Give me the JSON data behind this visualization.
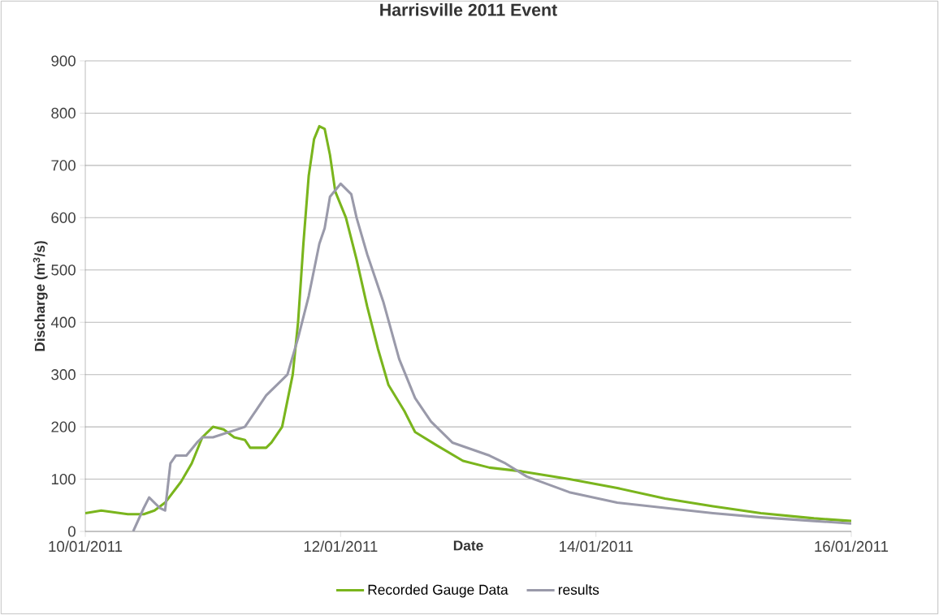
{
  "chart_data": {
    "type": "line",
    "title": "Harrisville 2011 Event",
    "xlabel": "Date",
    "ylabel": "Discharge (m$^{3}$/s)",
    "xlim": [
      "2011-01-10",
      "2011-01-16"
    ],
    "xticks": [
      {
        "value": "2011-01-10",
        "label": "10/01/2011"
      },
      {
        "value": "2011-01-12",
        "label": "12/01/2011"
      },
      {
        "value": "2011-01-14",
        "label": "14/01/2011"
      },
      {
        "value": "2011-01-16",
        "label": "16/01/2011"
      }
    ],
    "ylim": [
      0,
      900
    ],
    "yticks": [
      0,
      100,
      200,
      300,
      400,
      500,
      600,
      700,
      800,
      900
    ],
    "grid": "y",
    "legend": "bottom",
    "marker": "none",
    "line_style": "solid",
    "series": [
      {
        "name": "Recorded Gauge Data",
        "color": "#7ab51d",
        "x": [
          "2011-01-10T00:00",
          "2011-01-10T03:00",
          "2011-01-10T08:00",
          "2011-01-10T11:00",
          "2011-01-10T13:00",
          "2011-01-10T15:00",
          "2011-01-10T18:00",
          "2011-01-10T20:00",
          "2011-01-10T22:00",
          "2011-01-11T00:00",
          "2011-01-11T02:00",
          "2011-01-11T04:00",
          "2011-01-11T06:00",
          "2011-01-11T07:00",
          "2011-01-11T10:00",
          "2011-01-11T11:00",
          "2011-01-11T13:00",
          "2011-01-11T14:00",
          "2011-01-11T15:00",
          "2011-01-11T16:00",
          "2011-01-11T17:00",
          "2011-01-11T18:00",
          "2011-01-11T19:00",
          "2011-01-11T20:00",
          "2011-01-11T21:00",
          "2011-01-11T22:00",
          "2011-01-11T23:00",
          "2011-01-12T01:00",
          "2011-01-12T03:00",
          "2011-01-12T05:00",
          "2011-01-12T07:00",
          "2011-01-12T09:00",
          "2011-01-12T12:00",
          "2011-01-12T14:00",
          "2011-01-12T18:00",
          "2011-01-12T23:00",
          "2011-01-13T04:00",
          "2011-01-13T10:00",
          "2011-01-13T19:00",
          "2011-01-14T04:00",
          "2011-01-14T13:00",
          "2011-01-14T22:00",
          "2011-01-15T07:00",
          "2011-01-15T17:00",
          "2011-01-16T00:00"
        ],
        "values": [
          35,
          40,
          33,
          33,
          40,
          55,
          95,
          130,
          180,
          200,
          195,
          180,
          175,
          160,
          160,
          170,
          200,
          250,
          300,
          400,
          550,
          680,
          750,
          775,
          770,
          720,
          650,
          600,
          520,
          430,
          350,
          280,
          230,
          190,
          165,
          135,
          122,
          115,
          100,
          83,
          63,
          48,
          35,
          25,
          20
        ]
      },
      {
        "name": "results",
        "color": "#9a9aaa",
        "x": [
          "2011-01-10T09:00",
          "2011-01-10T11:00",
          "2011-01-10T12:00",
          "2011-01-10T13:00",
          "2011-01-10T14:00",
          "2011-01-10T15:00",
          "2011-01-10T16:00",
          "2011-01-10T17:00",
          "2011-01-10T19:00",
          "2011-01-10T21:00",
          "2011-01-10T22:00",
          "2011-01-11T00:00",
          "2011-01-11T03:00",
          "2011-01-11T06:00",
          "2011-01-11T08:00",
          "2011-01-11T10:00",
          "2011-01-11T13:00",
          "2011-01-11T14:00",
          "2011-01-11T16:00",
          "2011-01-11T18:00",
          "2011-01-11T20:00",
          "2011-01-11T21:00",
          "2011-01-11T22:00",
          "2011-01-12T00:00",
          "2011-01-12T02:00",
          "2011-01-12T03:00",
          "2011-01-12T05:00",
          "2011-01-12T08:00",
          "2011-01-12T11:00",
          "2011-01-12T14:00",
          "2011-01-12T17:00",
          "2011-01-12T21:00",
          "2011-01-13T04:00",
          "2011-01-13T07:00",
          "2011-01-13T11:00",
          "2011-01-13T19:00",
          "2011-01-14T04:00",
          "2011-01-14T13:00",
          "2011-01-14T22:00",
          "2011-01-15T07:00",
          "2011-01-15T17:00",
          "2011-01-16T00:00"
        ],
        "values": [
          0,
          45,
          65,
          55,
          45,
          40,
          130,
          145,
          145,
          170,
          180,
          180,
          190,
          200,
          230,
          260,
          290,
          300,
          370,
          450,
          550,
          580,
          640,
          665,
          645,
          600,
          530,
          440,
          330,
          255,
          210,
          170,
          145,
          130,
          105,
          75,
          55,
          45,
          35,
          27,
          20,
          15
        ]
      }
    ]
  }
}
